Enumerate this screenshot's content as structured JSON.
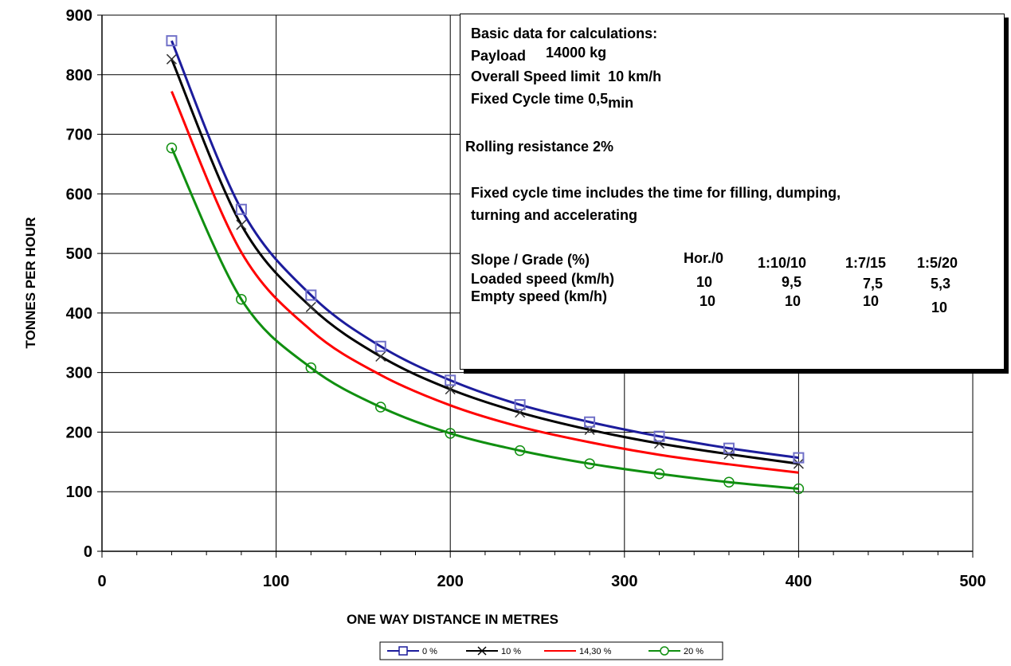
{
  "chart_data": {
    "type": "line",
    "xlabel": "ONE WAY DISTANCE IN METRES",
    "ylabel": "TONNES PER HOUR",
    "xlim": [
      0,
      500
    ],
    "ylim": [
      0,
      900
    ],
    "x_ticks": [
      "0",
      "100",
      "200",
      "300",
      "400",
      "500"
    ],
    "y_ticks": [
      "0",
      "100",
      "200",
      "300",
      "400",
      "500",
      "600",
      "700",
      "800",
      "900"
    ],
    "grid": true,
    "legend_position": "bottom",
    "x": [
      40,
      80,
      120,
      160,
      200,
      240,
      280,
      320,
      360,
      400
    ],
    "series": [
      {
        "name": "0 %",
        "color": "#1c1c9c",
        "marker": "square",
        "values": [
          857,
          574,
          430,
          344,
          287,
          246,
          217,
          193,
          173,
          157
        ]
      },
      {
        "name": "10 %",
        "color": "#000000",
        "marker": "cross",
        "values": [
          826,
          548,
          410,
          327,
          272,
          233,
          204,
          181,
          163,
          147
        ]
      },
      {
        "name": "14,30 %",
        "color": "#ff0000",
        "marker": "none",
        "values": [
          772,
          502,
          371,
          296,
          245,
          209,
          183,
          162,
          146,
          132
        ]
      },
      {
        "name": "20 %",
        "color": "#108f10",
        "marker": "circle",
        "values": [
          677,
          423,
          308,
          242,
          198,
          169,
          147,
          130,
          116,
          105
        ]
      }
    ],
    "annotation": {
      "heading": "Basic data for calculations:",
      "payload_label": "Payload",
      "payload_value": "14000",
      "payload_unit": "kg",
      "speed_label": "Overall Speed limit",
      "speed_value": "10",
      "speed_unit": "km/h",
      "cycle_label": "Fixed Cycle time",
      "cycle_value": "0,5",
      "cycle_unit": "min",
      "rolling": "Rolling resistance  2%",
      "note_line1": "Fixed cycle time includes the time for filling, dumping,",
      "note_line2": "turning and accelerating",
      "table": {
        "rows": [
          {
            "label": "Slope / Grade (%)",
            "cells": [
              "Hor./0",
              "1:10/10",
              "1:7/15",
              "1:5/20"
            ]
          },
          {
            "label": "Loaded speed (km/h)",
            "cells": [
              "10",
              "9,5",
              "7,5",
              "5,3"
            ]
          },
          {
            "label": "Empty speed (km/h)",
            "cells": [
              "10",
              "10",
              "10",
              "10"
            ]
          }
        ]
      }
    }
  }
}
